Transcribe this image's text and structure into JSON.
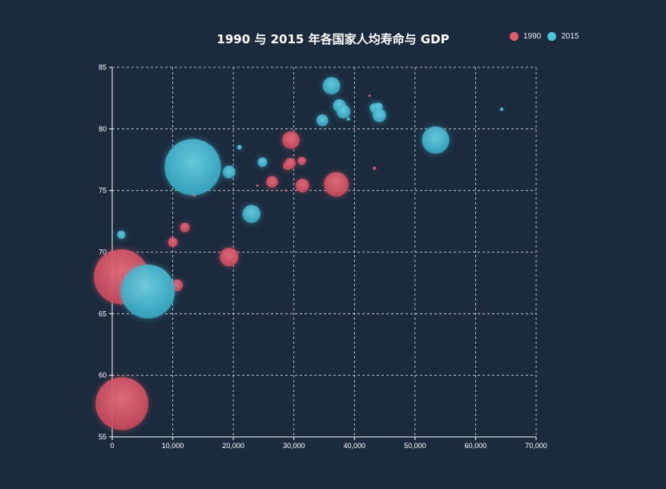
{
  "chart_data": {
    "type": "scatter",
    "title": "1990 与 2015 年各国家人均寿命与 GDP",
    "xlabel": "",
    "ylabel": "",
    "xlim": [
      0,
      70000
    ],
    "ylim": [
      55,
      85
    ],
    "xticks": [
      0,
      10000,
      20000,
      30000,
      40000,
      50000,
      60000,
      70000
    ],
    "xtick_labels": [
      "0",
      "10,000",
      "20,000",
      "30,000",
      "40,000",
      "50,000",
      "60,000",
      "70,000"
    ],
    "yticks": [
      55,
      60,
      65,
      70,
      75,
      80,
      85
    ],
    "ytick_labels": [
      "55",
      "60",
      "65",
      "70",
      "75",
      "80",
      "85"
    ],
    "grid": true,
    "legend_position": "top-right",
    "series": [
      {
        "name": "1990",
        "color": "#dd5c6b",
        "points": [
          {
            "x": 1600,
            "y": 57.7,
            "size": 1.2
          },
          {
            "x": 1500,
            "y": 68.0,
            "size": 1.3
          },
          {
            "x": 2200,
            "y": 68.0,
            "size": 0.03
          },
          {
            "x": 10700,
            "y": 67.3,
            "size": 0.06
          },
          {
            "x": 10000,
            "y": 70.8,
            "size": 0.04
          },
          {
            "x": 12000,
            "y": 72.0,
            "size": 0.04
          },
          {
            "x": 19300,
            "y": 69.6,
            "size": 0.15
          },
          {
            "x": 13500,
            "y": 74.7,
            "size": 0.01
          },
          {
            "x": 24000,
            "y": 75.4,
            "size": 0.002
          },
          {
            "x": 26400,
            "y": 75.7,
            "size": 0.06
          },
          {
            "x": 28700,
            "y": 75.0,
            "size": 0.002
          },
          {
            "x": 29500,
            "y": 79.1,
            "size": 0.13
          },
          {
            "x": 28900,
            "y": 77.0,
            "size": 0.03
          },
          {
            "x": 29400,
            "y": 77.2,
            "size": 0.05
          },
          {
            "x": 31300,
            "y": 77.4,
            "size": 0.03
          },
          {
            "x": 31400,
            "y": 75.4,
            "size": 0.08
          },
          {
            "x": 37000,
            "y": 75.5,
            "size": 0.26
          },
          {
            "x": 43300,
            "y": 76.8,
            "size": 0.005
          },
          {
            "x": 42500,
            "y": 82.7,
            "size": 0.0001
          }
        ]
      },
      {
        "name": "2015",
        "color": "#4dc3d9",
        "points": [
          {
            "x": 1500,
            "y": 71.4,
            "size": 0.03
          },
          {
            "x": 5900,
            "y": 66.8,
            "size": 1.25
          },
          {
            "x": 13300,
            "y": 76.9,
            "size": 1.37
          },
          {
            "x": 19300,
            "y": 76.5,
            "size": 0.07
          },
          {
            "x": 21000,
            "y": 78.5,
            "size": 0.01
          },
          {
            "x": 23000,
            "y": 73.1,
            "size": 0.14
          },
          {
            "x": 24800,
            "y": 77.3,
            "size": 0.04
          },
          {
            "x": 34700,
            "y": 80.7,
            "size": 0.06
          },
          {
            "x": 36200,
            "y": 83.5,
            "size": 0.13
          },
          {
            "x": 37500,
            "y": 81.9,
            "size": 0.07
          },
          {
            "x": 38200,
            "y": 81.4,
            "size": 0.08
          },
          {
            "x": 39000,
            "y": 80.8,
            "size": 0.005
          },
          {
            "x": 43300,
            "y": 81.7,
            "size": 0.04
          },
          {
            "x": 44000,
            "y": 81.8,
            "size": 0.03
          },
          {
            "x": 44100,
            "y": 81.1,
            "size": 0.08
          },
          {
            "x": 53400,
            "y": 79.1,
            "size": 0.32
          },
          {
            "x": 64300,
            "y": 81.6,
            "size": 0.005
          }
        ]
      }
    ]
  },
  "colors": {
    "background": "#1b2a3d",
    "axis": "#ffffff",
    "grid": "#ffffff"
  }
}
